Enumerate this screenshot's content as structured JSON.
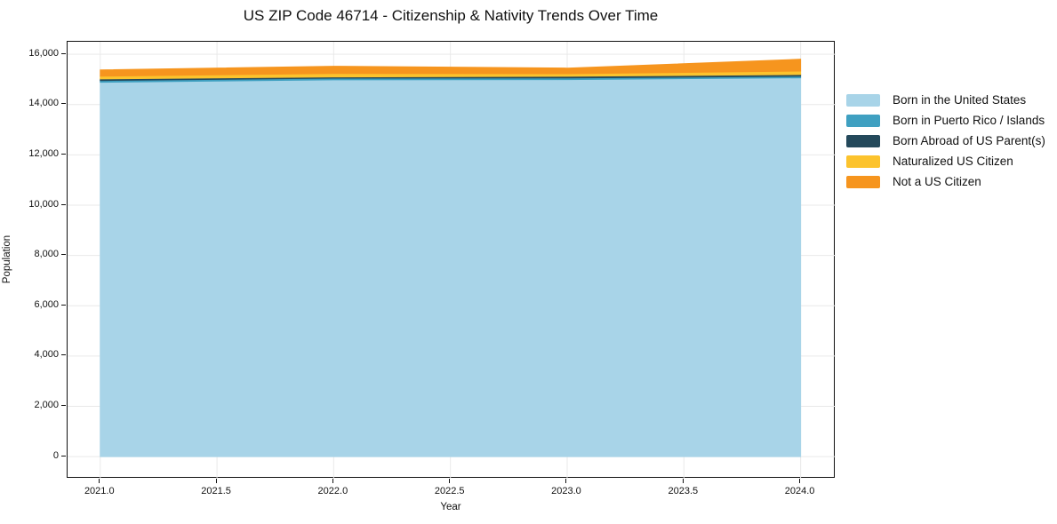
{
  "title": "US ZIP Code 46714 - Citizenship & Nativity Trends Over Time",
  "chart_data": {
    "type": "area",
    "stacked": true,
    "title": "US ZIP Code 46714 - Citizenship & Nativity Trends Over Time",
    "xlabel": "Year",
    "ylabel": "Population",
    "x": [
      2021,
      2022,
      2023,
      2024
    ],
    "series": [
      {
        "name": "Born in the United States",
        "color": "#a8d4e8",
        "values": [
          14890,
          14985,
          14995,
          15065
        ]
      },
      {
        "name": "Born in Puerto Rico / Islands",
        "color": "#3fa0c1",
        "values": [
          65,
          65,
          65,
          65
        ]
      },
      {
        "name": "Born Abroad of US Parent(s)",
        "color": "#24495b",
        "values": [
          65,
          50,
          65,
          65
        ]
      },
      {
        "name": "Naturalized US Citizen",
        "color": "#fcc32d",
        "values": [
          110,
          140,
          105,
          140
        ]
      },
      {
        "name": "Not a US Citizen",
        "color": "#f6951e",
        "values": [
          250,
          285,
          220,
          470
        ]
      }
    ],
    "totals": [
      15380,
      15525,
      15450,
      15805
    ],
    "xlim": [
      2020.86,
      2024.15
    ],
    "ylim": [
      -880,
      16500
    ],
    "x_ticks": [
      2021.0,
      2021.5,
      2022.0,
      2022.5,
      2023.0,
      2023.5,
      2024.0
    ],
    "x_tick_labels": [
      "2021.0",
      "2021.5",
      "2022.0",
      "2022.5",
      "2023.0",
      "2023.5",
      "2024.0"
    ],
    "y_ticks": [
      0,
      2000,
      4000,
      6000,
      8000,
      10000,
      12000,
      14000,
      16000
    ],
    "y_tick_labels": [
      "0",
      "2,000",
      "4,000",
      "6,000",
      "8,000",
      "10,000",
      "12,000",
      "14,000",
      "16,000"
    ],
    "grid": true,
    "grid_color": "#e9e9e9",
    "axis_color": "#111111",
    "background_color": "#ffffff",
    "legend_position": "right"
  }
}
